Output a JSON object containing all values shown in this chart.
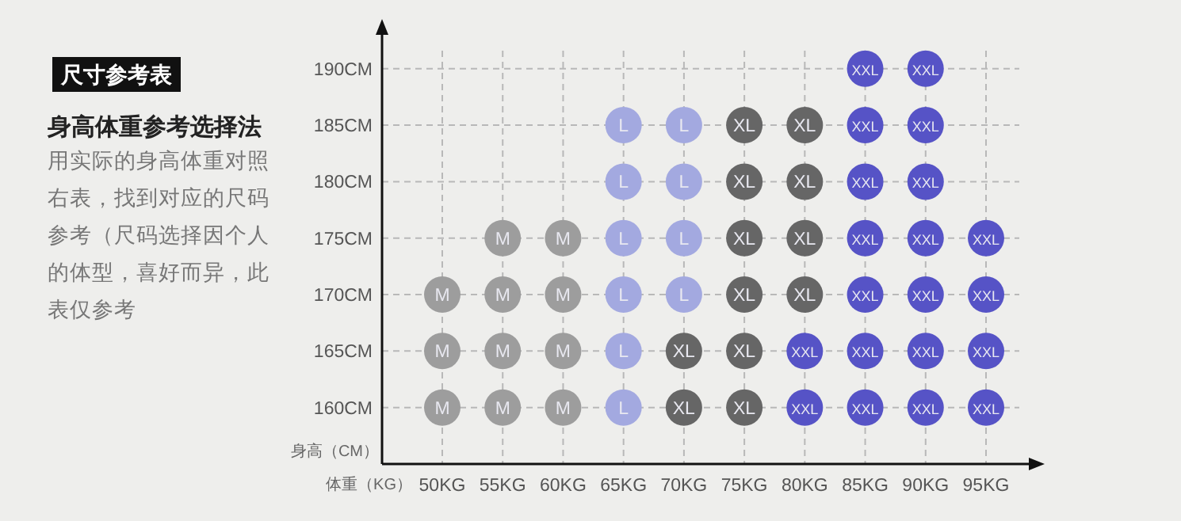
{
  "chart_data": {
    "type": "scatter",
    "title": "尺寸参考表",
    "subtitle": "身高体重参考选择法",
    "annotations": [
      "用实际的身高体重对照右表，找到对应的尺码参考（尺码选择因个人的体型，喜好而异，此表仅参考"
    ],
    "xlabel": "体重（KG）",
    "ylabel": "身高（CM）",
    "categories": [
      "50KG",
      "55KG",
      "60KG",
      "65KG",
      "70KG",
      "75KG",
      "80KG",
      "85KG",
      "90KG",
      "95KG"
    ],
    "ylim": [
      155,
      193
    ],
    "yticks": [
      {
        "value": 160,
        "label": "160CM"
      },
      {
        "value": 165,
        "label": "165CM"
      },
      {
        "value": 170,
        "label": "170CM"
      },
      {
        "value": 175,
        "label": "175CM"
      },
      {
        "value": 180,
        "label": "180CM"
      },
      {
        "value": 185,
        "label": "185CM"
      },
      {
        "value": 190,
        "label": "190CM"
      }
    ],
    "grid": true,
    "marker": "circle",
    "series": [
      {
        "name": "M",
        "color": "#9d9d9d",
        "x": [
          "55KG",
          "60KG",
          "50KG",
          "55KG",
          "60KG",
          "50KG",
          "55KG",
          "60KG",
          "50KG",
          "55KG",
          "60KG"
        ],
        "values": [
          175,
          175,
          170,
          170,
          170,
          165,
          165,
          165,
          160,
          160,
          160
        ]
      },
      {
        "name": "L",
        "color": "#a3a9e0",
        "x": [
          "65KG",
          "70KG",
          "65KG",
          "70KG",
          "65KG",
          "70KG",
          "65KG",
          "70KG",
          "65KG",
          "65KG"
        ],
        "values": [
          185,
          185,
          180,
          180,
          175,
          175,
          170,
          170,
          165,
          160
        ]
      },
      {
        "name": "XL",
        "color": "#666666",
        "x": [
          "75KG",
          "80KG",
          "75KG",
          "80KG",
          "75KG",
          "80KG",
          "75KG",
          "80KG",
          "70KG",
          "75KG",
          "70KG",
          "75KG"
        ],
        "values": [
          185,
          185,
          180,
          180,
          175,
          175,
          170,
          170,
          165,
          165,
          160,
          160
        ]
      },
      {
        "name": "XXL",
        "color": "#5653c6",
        "x": [
          "85KG",
          "90KG",
          "85KG",
          "90KG",
          "85KG",
          "90KG",
          "85KG",
          "90KG",
          "95KG",
          "85KG",
          "90KG",
          "95KG",
          "80KG",
          "85KG",
          "90KG",
          "95KG",
          "80KG",
          "85KG",
          "90KG",
          "95KG"
        ],
        "values": [
          190,
          190,
          185,
          185,
          180,
          180,
          175,
          175,
          175,
          170,
          170,
          170,
          165,
          165,
          165,
          165,
          160,
          160,
          160,
          160
        ]
      }
    ]
  }
}
